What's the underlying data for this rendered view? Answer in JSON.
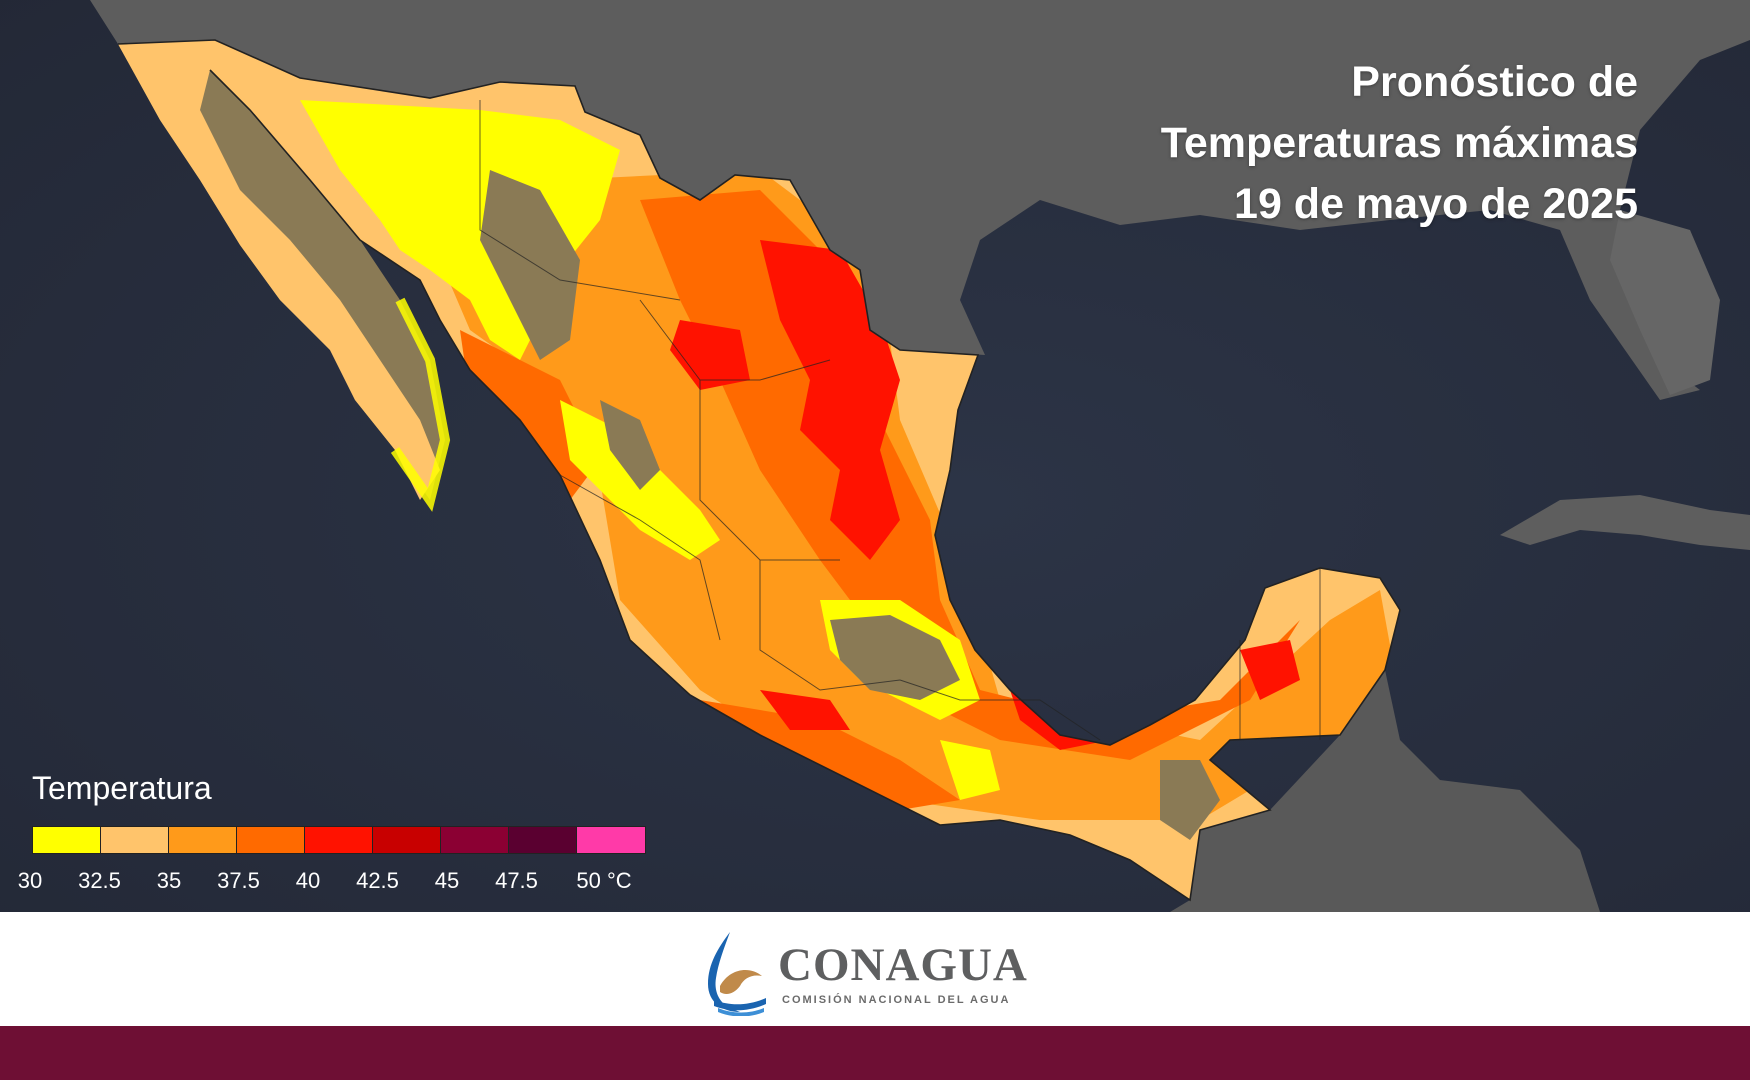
{
  "title": {
    "line1": "Pronóstico de",
    "line2": "Temperaturas máximas",
    "line3": "19 de mayo de 2025"
  },
  "legend": {
    "title": "Temperatura",
    "colors": [
      "#ffff00",
      "#ffc46b",
      "#ff9a1a",
      "#ff6a00",
      "#ff1200",
      "#c80000",
      "#8b0033",
      "#5a0030",
      "#ff3aa8"
    ],
    "ticks": [
      "30",
      "32.5",
      "35",
      "37.5",
      "40",
      "42.5",
      "45",
      "47.5",
      "50 °C"
    ]
  },
  "logo": {
    "name": "CONAGUA",
    "subtitle": "COMISIÓN NACIONAL DEL AGUA"
  },
  "colors": {
    "ocean": "#2a2f3d",
    "land_gray": "#5c5c5c",
    "under_30": "#8a7a55",
    "bottom_band": "#6e0f34"
  }
}
